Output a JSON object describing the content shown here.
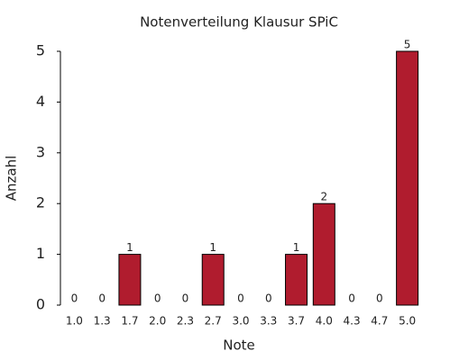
{
  "chart_data": {
    "type": "bar",
    "title": "Notenverteilung Klausur SPiC",
    "x_label": "Note",
    "y_label": "Anzahl",
    "categories": [
      "1.0",
      "1.3",
      "1.7",
      "2.0",
      "2.3",
      "2.7",
      "3.0",
      "3.3",
      "3.7",
      "4.0",
      "4.3",
      "4.7",
      "5.0"
    ],
    "values": [
      0,
      0,
      1,
      0,
      0,
      1,
      0,
      0,
      1,
      2,
      0,
      0,
      5
    ],
    "color": "#b01c2e",
    "ylim": [
      0,
      5
    ],
    "yticks": [
      0,
      1,
      2,
      3,
      4,
      5
    ],
    "grid": false
  }
}
